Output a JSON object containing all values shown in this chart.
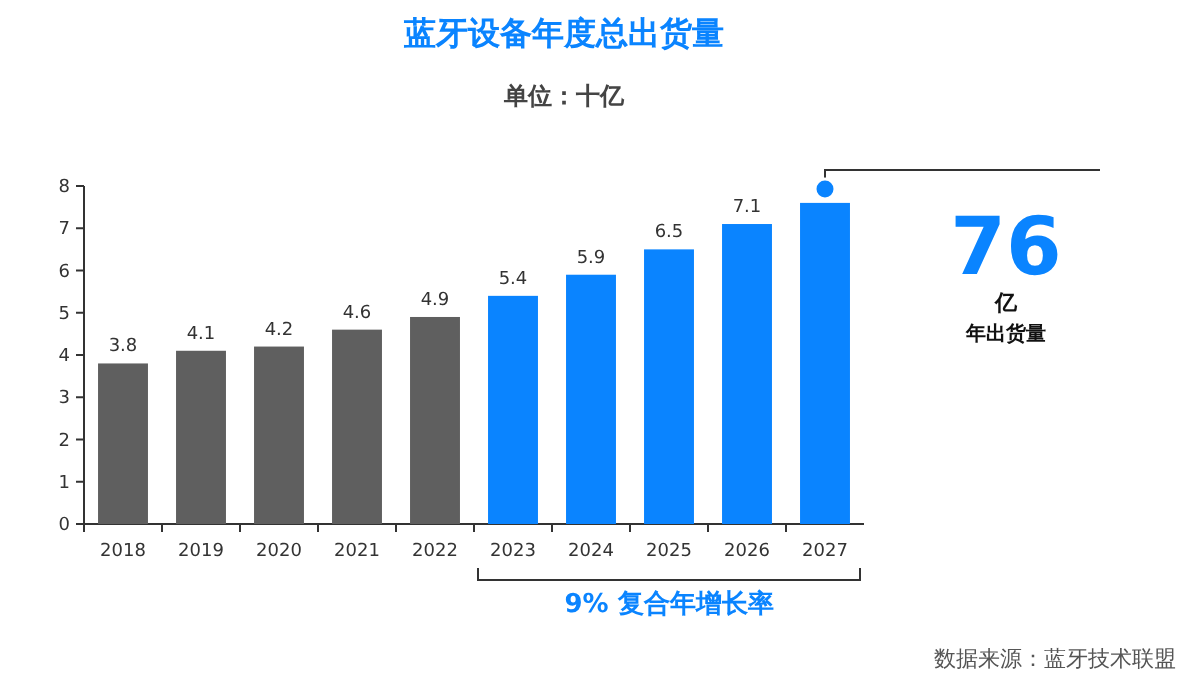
{
  "chart_data": {
    "type": "bar",
    "title": "蓝牙设备年度总出货量",
    "subtitle": "单位：十亿",
    "categories": [
      "2018",
      "2019",
      "2020",
      "2021",
      "2022",
      "2023",
      "2024",
      "2025",
      "2026",
      "2027"
    ],
    "values": [
      3.8,
      4.1,
      4.2,
      4.6,
      4.9,
      5.4,
      5.9,
      6.5,
      7.1,
      7.6
    ],
    "colors": [
      "#5f5f5f",
      "#5f5f5f",
      "#5f5f5f",
      "#5f5f5f",
      "#5f5f5f",
      "#0a84ff",
      "#0a84ff",
      "#0a84ff",
      "#0a84ff",
      "#0a84ff"
    ],
    "value_labels": [
      "3.8",
      "4.1",
      "4.2",
      "4.6",
      "4.9",
      "5.4",
      "5.9",
      "6.5",
      "7.1",
      null
    ],
    "ylim": [
      0,
      8
    ],
    "yticks": [
      0,
      1,
      2,
      3,
      4,
      5,
      6,
      7,
      8
    ],
    "annotations": [
      {
        "text": "76",
        "x": "2027",
        "y": 7.6
      },
      "亿",
      "年出货量",
      "9% 复合年增长率",
      "数据来源：蓝牙技术联盟"
    ]
  }
}
